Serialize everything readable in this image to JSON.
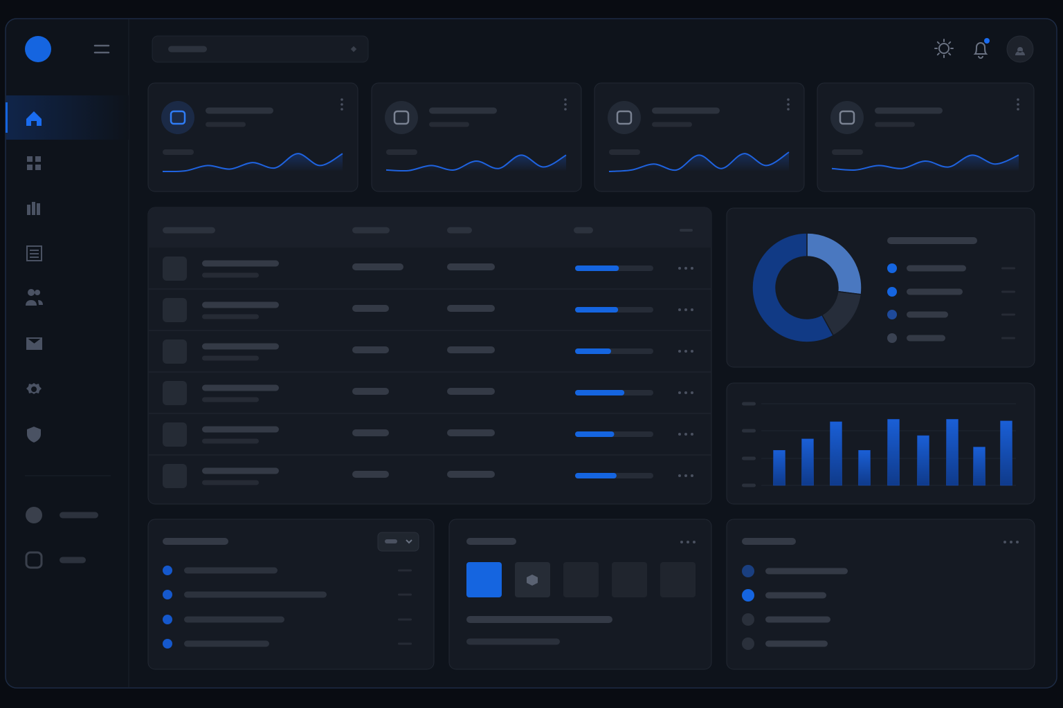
{
  "stat_cards": [
    {
      "sparkline": [
        0,
        2,
        20,
        8,
        30,
        12,
        60,
        20,
        60
      ]
    },
    {
      "sparkline": [
        5,
        3,
        20,
        5,
        35,
        10,
        55,
        15,
        55
      ]
    },
    {
      "sparkline": [
        0,
        5,
        25,
        5,
        55,
        10,
        60,
        20,
        65
      ]
    },
    {
      "sparkline": [
        10,
        5,
        20,
        10,
        35,
        15,
        55,
        25,
        55
      ]
    }
  ],
  "table": {
    "rows": [
      {
        "progress": 56
      },
      {
        "progress": 55
      },
      {
        "progress": 46
      },
      {
        "progress": 63
      },
      {
        "progress": 50
      },
      {
        "progress": 53
      }
    ]
  },
  "donut": {
    "values": [
      27,
      15,
      58
    ],
    "colors": [
      "#4a78c0",
      "#262d3a",
      "#113a85"
    ]
  },
  "bar_chart": {
    "values": [
      43,
      57,
      78,
      43,
      81,
      61,
      81,
      47,
      79
    ],
    "color": "#1650c0"
  }
}
